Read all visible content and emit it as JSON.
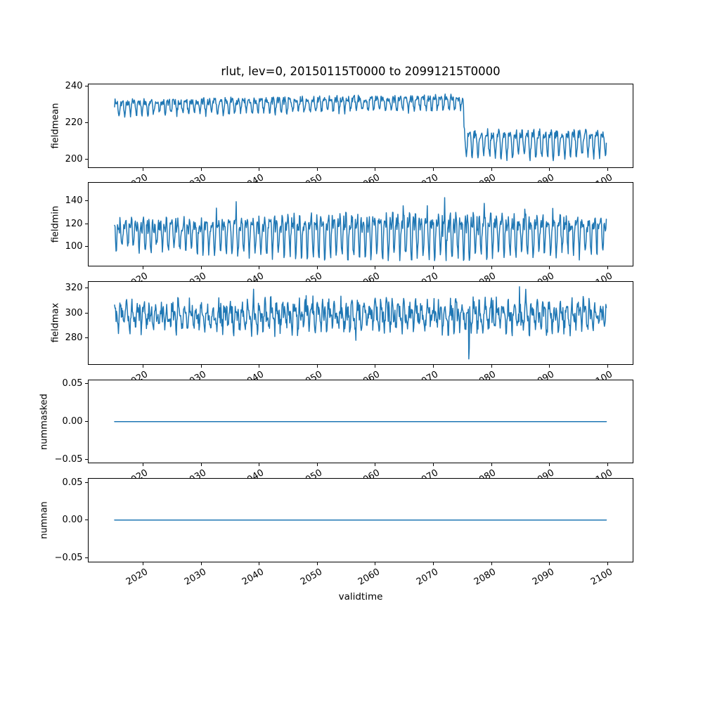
{
  "chart_data": {
    "type": "line",
    "title": "rlut, lev=0, 20150115T0000 to 20991215T0000",
    "xlabel": "validtime",
    "variable": "rlut",
    "level": "lev=0",
    "time_range": {
      "start": "20150115T0000",
      "end": "20991215T0000"
    },
    "line_color": "#1f77b4",
    "line_width": 1.5,
    "x_start": 2015.0417,
    "x_end": 2099.9583,
    "n_points": 1020,
    "xlim": [
      2010.55,
      2104.45
    ],
    "x_ticks": [
      {
        "value": 2020,
        "label": "2020"
      },
      {
        "value": 2030,
        "label": "2030"
      },
      {
        "value": 2040,
        "label": "2040"
      },
      {
        "value": 2050,
        "label": "2050"
      },
      {
        "value": 2060,
        "label": "2060"
      },
      {
        "value": 2070,
        "label": "2070"
      },
      {
        "value": 2080,
        "label": "2080"
      },
      {
        "value": 2090,
        "label": "2090"
      },
      {
        "value": 2100,
        "label": "2100"
      }
    ],
    "panels": [
      {
        "ylabel": "fieldmean",
        "ylim": [
          195.5,
          241.5
        ],
        "yticks": [
          {
            "value": 240,
            "label": "240"
          },
          {
            "value": 220,
            "label": "220"
          },
          {
            "value": 200,
            "label": "200"
          }
        ],
        "gen": {
          "seed": 7,
          "blend": 0.15,
          "clamp": [
            196.2,
            239.4
          ],
          "segments": [
            {
              "until": 2075.25,
              "base": 229.3,
              "trend": 0.05,
              "a1": 3.0,
              "p1": -0.3,
              "a2": 1.6,
              "p2": 1.0,
              "noise": 1.9
            },
            {
              "until": 2100,
              "base": 209.8,
              "trend": 0,
              "a1": 6.2,
              "p1": -0.3,
              "a2": 2.6,
              "p2": 1.2,
              "noise": 2.3
            }
          ]
        }
      },
      {
        "ylabel": "fieldmin",
        "ylim": [
          83,
          156
        ],
        "yticks": [
          {
            "value": 140,
            "label": "140"
          },
          {
            "value": 120,
            "label": "120"
          },
          {
            "value": 100,
            "label": "100"
          }
        ],
        "gen": {
          "seed": 3,
          "clamp": [
            87.2,
            150.4
          ],
          "amod": {
            "depth": 0.22,
            "period": 100,
            "phase": -1.5708
          },
          "spike": {
            "prob": 0.05,
            "base": 8,
            "extra": 8
          },
          "segments": [
            {
              "until": 2100,
              "base": 112.5,
              "trend": 0,
              "a1": 11.5,
              "p1": 2.6,
              "a2": 7.5,
              "p2": 0.8,
              "noise": 5.5
            }
          ]
        }
      },
      {
        "ylabel": "fieldmax",
        "ylim": [
          258.5,
          325.5
        ],
        "yticks": [
          {
            "value": 320,
            "label": "320"
          },
          {
            "value": 300,
            "label": "300"
          },
          {
            "value": 280,
            "label": "280"
          }
        ],
        "gen": {
          "seed": 11,
          "clamp": [
            275.8,
            321.6
          ],
          "spike": {
            "prob": 0.08,
            "base": 4,
            "extra": 6
          },
          "events": [
            {
              "t": 2076.17,
              "value": 263.0
            },
            {
              "t": 2076.25,
              "value": 272.0
            }
          ],
          "segments": [
            {
              "until": 2100,
              "base": 298.3,
              "trend": 0,
              "a1": 7.0,
              "p1": 0.9,
              "a2": 4.6,
              "p2": 2.2,
              "noise": 7.0
            }
          ]
        }
      },
      {
        "ylabel": "nummasked",
        "ylim": [
          -0.0555,
          0.0555
        ],
        "yticks": [
          {
            "value": 0.05,
            "label": "0.05"
          },
          {
            "value": 0.0,
            "label": "0.00"
          },
          {
            "value": -0.05,
            "label": "−0.05"
          }
        ],
        "gen": {
          "const": 0.0
        }
      },
      {
        "ylabel": "numnan",
        "ylim": [
          -0.0555,
          0.0555
        ],
        "yticks": [
          {
            "value": 0.05,
            "label": "0.05"
          },
          {
            "value": 0.0,
            "label": "0.00"
          },
          {
            "value": -0.05,
            "label": "−0.05"
          }
        ],
        "gen": {
          "const": 0.0
        }
      }
    ]
  }
}
